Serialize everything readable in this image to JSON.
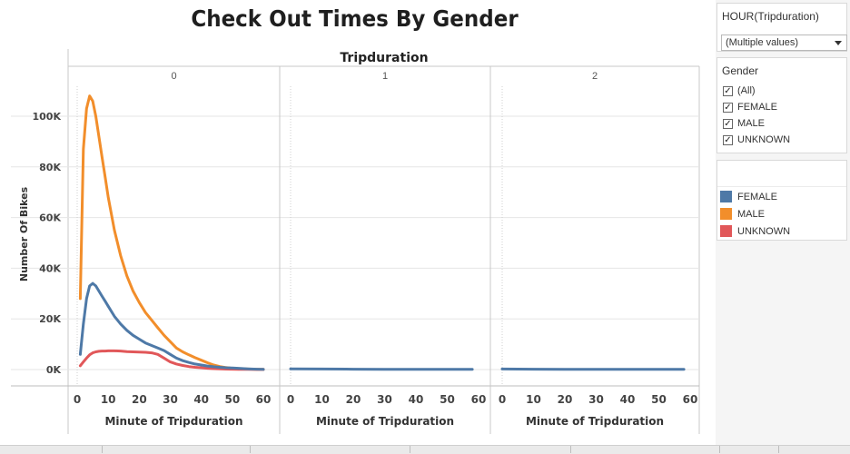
{
  "chart_data": {
    "type": "line",
    "title": "Check Out Times By Gender",
    "column_header": "Tripduration",
    "panels": [
      "0",
      "1",
      "2"
    ],
    "xlabel": "Minute of Tripduration",
    "ylabel": "Number Of Bikes",
    "xlim": [
      0,
      60
    ],
    "ylim": [
      0,
      110000
    ],
    "x_ticks": [
      0,
      10,
      20,
      30,
      40,
      50,
      60
    ],
    "y_ticks": [
      0,
      20000,
      40000,
      60000,
      80000,
      100000
    ],
    "y_tick_labels": [
      "0K",
      "20K",
      "40K",
      "60K",
      "80K",
      "100K"
    ],
    "grid": true,
    "legend": "right",
    "series": [
      {
        "name": "FEMALE",
        "color": "#4e79a7",
        "panel_0": {
          "x": [
            1,
            2,
            3,
            4,
            5,
            6,
            7,
            8,
            9,
            10,
            12,
            14,
            16,
            18,
            20,
            22,
            24,
            26,
            28,
            30,
            32,
            34,
            36,
            38,
            40,
            42,
            44,
            46,
            48,
            50,
            52,
            55,
            58,
            60
          ],
          "y": [
            6000,
            18000,
            28000,
            33000,
            34000,
            33000,
            31000,
            29000,
            27000,
            25000,
            21000,
            18000,
            15500,
            13500,
            12000,
            10500,
            9500,
            8500,
            7500,
            6000,
            4500,
            3500,
            2800,
            2200,
            1800,
            1400,
            1100,
            900,
            700,
            600,
            500,
            300,
            150,
            80
          ]
        },
        "panel_1": {
          "x": [
            0,
            10,
            20,
            30,
            40,
            50,
            58
          ],
          "y": [
            300,
            200,
            150,
            120,
            100,
            80,
            70
          ]
        },
        "panel_2": {
          "x": [
            0,
            10,
            20,
            30,
            40,
            50,
            58
          ],
          "y": [
            200,
            150,
            120,
            100,
            80,
            70,
            60
          ]
        }
      },
      {
        "name": "MALE",
        "color": "#f28e2b",
        "panel_0": {
          "x": [
            1,
            2,
            3,
            4,
            5,
            6,
            7,
            8,
            9,
            10,
            12,
            14,
            16,
            18,
            20,
            22,
            24,
            26,
            28,
            30,
            32,
            34,
            36,
            38,
            40,
            42,
            44,
            46,
            48,
            50,
            52,
            55,
            58,
            60
          ],
          "y": [
            28000,
            87000,
            103000,
            108000,
            106000,
            100000,
            92000,
            84000,
            76000,
            68000,
            55000,
            45000,
            37000,
            31000,
            26500,
            22500,
            19500,
            16500,
            13500,
            11000,
            8500,
            7000,
            5800,
            4700,
            3700,
            2700,
            1800,
            1200,
            800,
            500,
            350,
            220,
            120,
            70
          ]
        }
      },
      {
        "name": "UNKNOWN",
        "color": "#e15759",
        "panel_0": {
          "x": [
            1,
            2,
            3,
            4,
            5,
            6,
            7,
            8,
            9,
            10,
            12,
            14,
            16,
            18,
            20,
            22,
            24,
            26,
            28,
            30,
            32,
            34,
            36,
            38,
            40,
            42,
            44,
            46,
            48,
            50,
            52,
            55,
            58,
            60
          ],
          "y": [
            1500,
            3000,
            4500,
            5800,
            6600,
            7000,
            7200,
            7300,
            7300,
            7400,
            7400,
            7300,
            7100,
            7000,
            6900,
            6800,
            6600,
            6000,
            4500,
            3000,
            2200,
            1600,
            1200,
            900,
            700,
            500,
            350,
            250,
            180,
            130,
            100,
            60,
            30,
            20
          ]
        }
      }
    ]
  },
  "filters": {
    "hour": {
      "title": "HOUR(Tripduration)",
      "value": "(Multiple values)"
    },
    "gender": {
      "title": "Gender",
      "options": [
        {
          "label": "(All)",
          "checked": "✓"
        },
        {
          "label": "FEMALE",
          "checked": "✓"
        },
        {
          "label": "MALE",
          "checked": "✓"
        },
        {
          "label": "UNKNOWN",
          "checked": "✓"
        }
      ]
    }
  },
  "legend": {
    "items": [
      {
        "label": "FEMALE",
        "color": "#4e79a7"
      },
      {
        "label": "MALE",
        "color": "#f28e2b"
      },
      {
        "label": "UNKNOWN",
        "color": "#e15759"
      }
    ]
  }
}
